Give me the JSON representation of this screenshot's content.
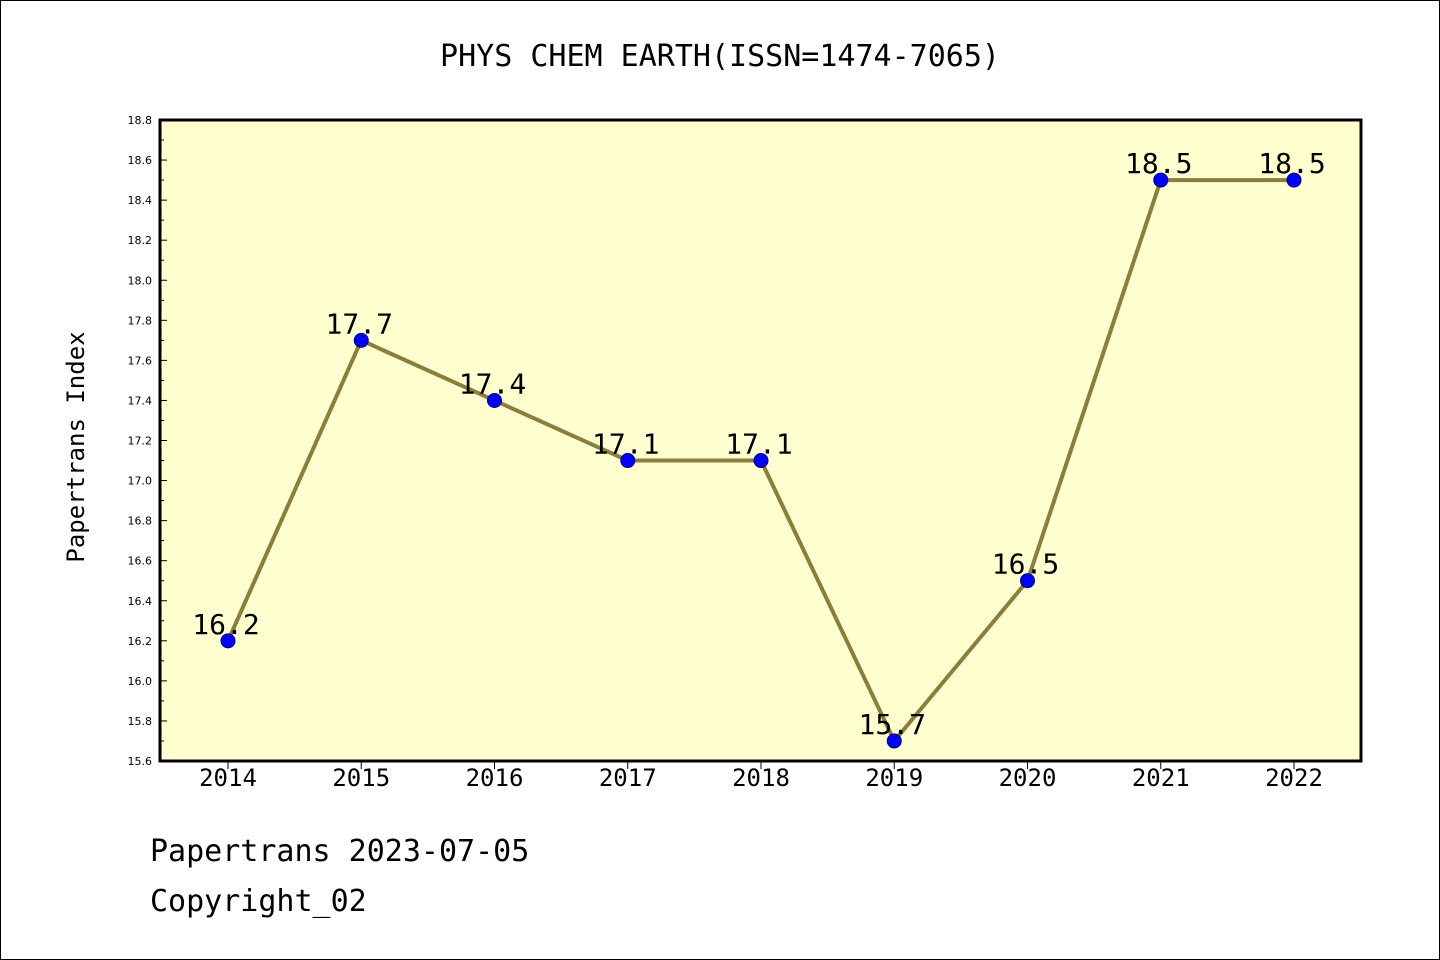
{
  "chart_data": {
    "type": "line",
    "title": "PHYS CHEM EARTH(ISSN=1474-7065)",
    "xlabel": "",
    "ylabel": "Papertrans Index",
    "categories": [
      "2014",
      "2015",
      "2016",
      "2017",
      "2018",
      "2019",
      "2020",
      "2021",
      "2022"
    ],
    "series": [
      {
        "values": [
          16.2,
          17.7,
          17.4,
          17.1,
          17.1,
          15.7,
          16.5,
          18.5,
          18.5
        ],
        "data_labels": [
          "16.2",
          "17.7",
          "17.4",
          "17.1",
          "17.1",
          "15.7",
          "16.5",
          "18.5",
          "18.5"
        ]
      }
    ],
    "ylim": [
      15.6,
      18.8
    ],
    "yticks": [
      "15.6",
      "15.8",
      "16.0",
      "16.2",
      "16.4",
      "16.6",
      "16.8",
      "17.0",
      "17.2",
      "17.4",
      "17.6",
      "17.8",
      "18.0",
      "18.2",
      "18.4",
      "18.6",
      "18.8"
    ],
    "grid": false,
    "legend": "none",
    "colors": {
      "plot_background": "#ffffd0",
      "line": "#8b7d3a",
      "marker": "#0000ff",
      "marker_edge": "#000080"
    }
  },
  "footer": {
    "line1": "Papertrans 2023-07-05",
    "line2": "Copyright_02"
  }
}
